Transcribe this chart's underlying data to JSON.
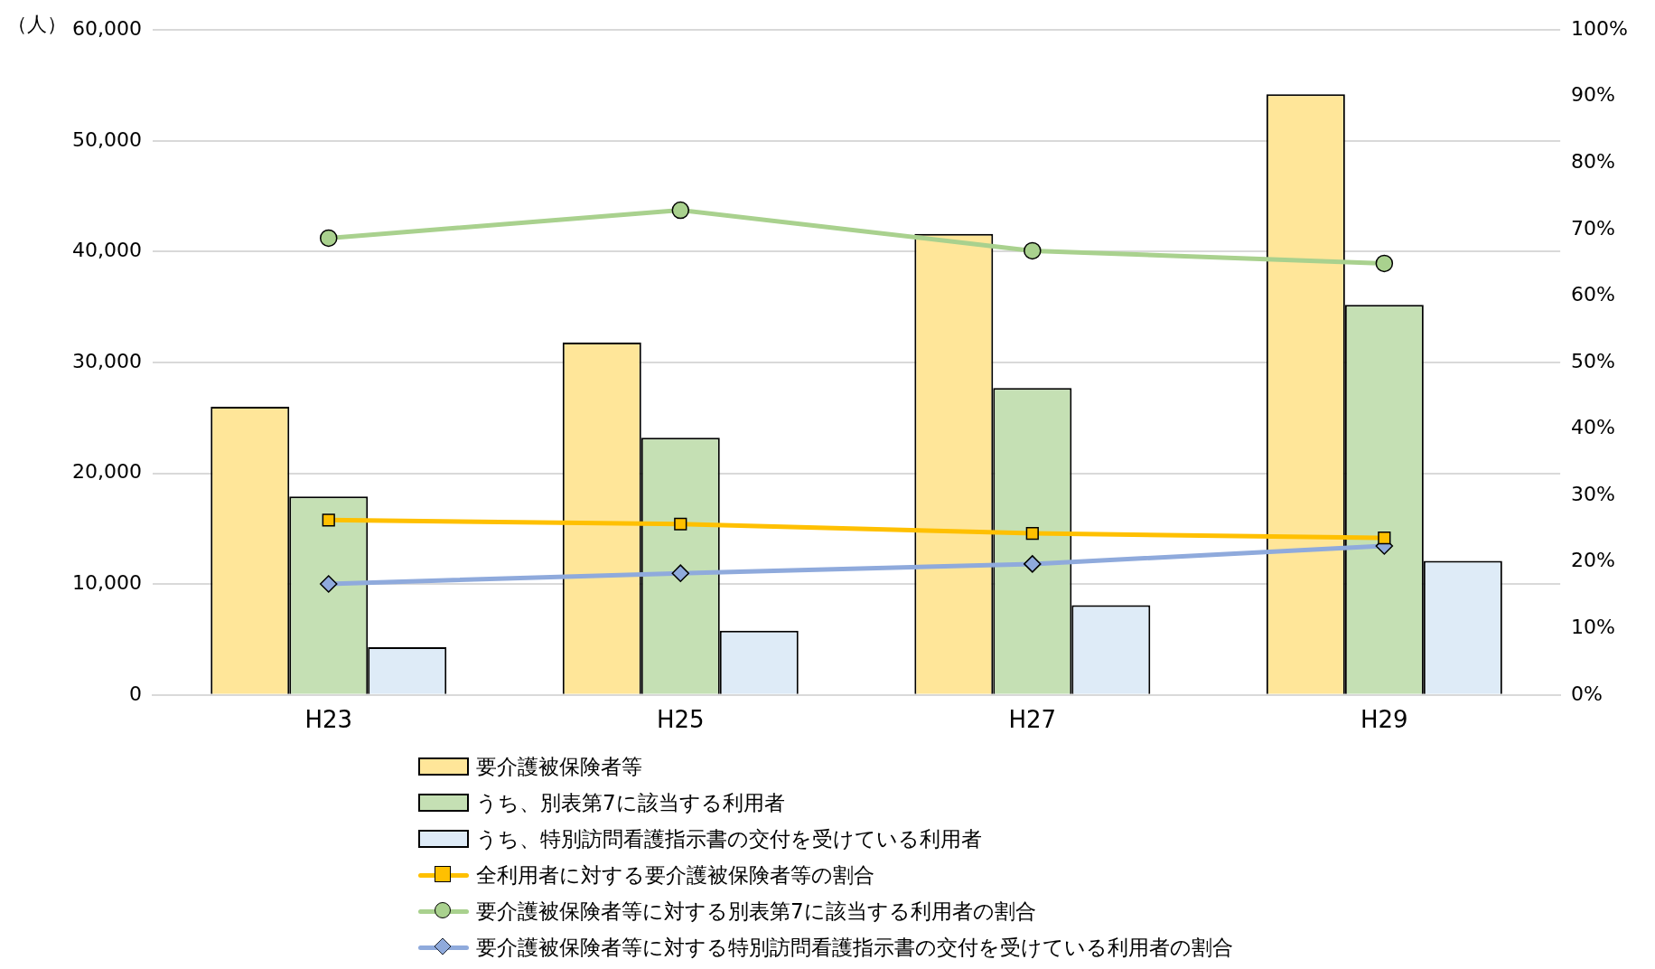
{
  "chart_data": {
    "type": "bar",
    "ylabel": "（人）",
    "categories": [
      "H23",
      "H25",
      "H27",
      "H29"
    ],
    "series": [
      {
        "name": "要介護被保険者等",
        "color": "#ffe699",
        "values": [
          26000,
          31800,
          41600,
          54200
        ]
      },
      {
        "name": "うち、別表第7に該当する利用者",
        "color": "#c5e0b4",
        "values": [
          17900,
          23200,
          27700,
          35200
        ]
      },
      {
        "name": "うち、特別訪問看護指示書の交付を受けている利用者",
        "color": "#deebf7",
        "values": [
          4300,
          5800,
          8100,
          12100
        ]
      },
      {
        "name": "全利用者に対する要介護被保険者等の割合",
        "type": "line",
        "axis": "y2",
        "marker": "square",
        "color": "#ffc000",
        "values": [
          26.3,
          25.7,
          24.3,
          23.6
        ]
      },
      {
        "name": "要介護被保険者等に対する別表第7に該当する利用者の割合",
        "type": "line",
        "axis": "y2",
        "marker": "circle",
        "color": "#a9d18e",
        "values": [
          68.7,
          72.9,
          66.8,
          64.9
        ]
      },
      {
        "name": "要介護被保険者等に対する特別訪問看護指示書の交付を受けている利用者の割合",
        "type": "line",
        "axis": "y2",
        "marker": "diamond",
        "color": "#8faadc",
        "values": [
          16.7,
          18.3,
          19.7,
          22.4
        ]
      }
    ],
    "ylim": [
      0,
      60000
    ],
    "yticks": [
      {
        "value": 0,
        "label": "0"
      },
      {
        "value": 10000,
        "label": "10,000"
      },
      {
        "value": 20000,
        "label": "20,000"
      },
      {
        "value": 30000,
        "label": "30,000"
      },
      {
        "value": 40000,
        "label": "40,000"
      },
      {
        "value": 50000,
        "label": "50,000"
      },
      {
        "value": 60000,
        "label": "60,000"
      }
    ],
    "y2lim": [
      0,
      100
    ],
    "y2ticks": [
      {
        "value": 0,
        "label": "0%"
      },
      {
        "value": 10,
        "label": "10%"
      },
      {
        "value": 20,
        "label": "20%"
      },
      {
        "value": 30,
        "label": "30%"
      },
      {
        "value": 40,
        "label": "40%"
      },
      {
        "value": 50,
        "label": "50%"
      },
      {
        "value": 60,
        "label": "60%"
      },
      {
        "value": 70,
        "label": "70%"
      },
      {
        "value": 80,
        "label": "80%"
      },
      {
        "value": 90,
        "label": "90%"
      },
      {
        "value": 100,
        "label": "100%"
      }
    ],
    "grid": "y",
    "legend": "bottom"
  }
}
